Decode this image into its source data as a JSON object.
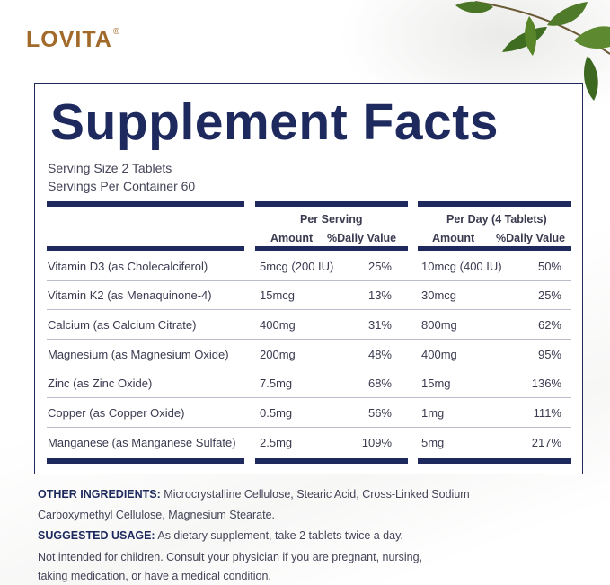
{
  "brand": {
    "name": "LOVITA",
    "registered": "®"
  },
  "title": "Supplement Facts",
  "serving_size": "Serving Size 2 Tablets",
  "servings_per_container": "Servings Per Container 60",
  "columns": {
    "per_serving": "Per Serving",
    "per_day": "Per Day (4 Tablets)",
    "amount": "Amount",
    "daily_value": "%Daily Value"
  },
  "rows": [
    {
      "name": "Vitamin D3  (as Cholecalciferol)",
      "serving_amount": "5mcg (200 IU)",
      "serving_dv": "25%",
      "day_amount": "10mcg (400 IU)",
      "day_dv": "50%"
    },
    {
      "name": "Vitamin K2  (as Menaquinone-4)",
      "serving_amount": "15mcg",
      "serving_dv": "13%",
      "day_amount": "30mcg",
      "day_dv": "25%"
    },
    {
      "name": "Calcium (as Calcium Citrate)",
      "serving_amount": "400mg",
      "serving_dv": "31%",
      "day_amount": "800mg",
      "day_dv": "62%"
    },
    {
      "name": "Magnesium (as Magnesium Oxide)",
      "serving_amount": "200mg",
      "serving_dv": "48%",
      "day_amount": "400mg",
      "day_dv": "95%"
    },
    {
      "name": "Zinc (as Zinc Oxide)",
      "serving_amount": "7.5mg",
      "serving_dv": "68%",
      "day_amount": "15mg",
      "day_dv": "136%"
    },
    {
      "name": "Copper (as Copper Oxide)",
      "serving_amount": "0.5mg",
      "serving_dv": "56%",
      "day_amount": "1mg",
      "day_dv": "111%"
    },
    {
      "name": "Manganese (as Manganese Sulfate)",
      "serving_amount": "2.5mg",
      "serving_dv": "109%",
      "day_amount": "5mg",
      "day_dv": "217%"
    }
  ],
  "other_ingredients": {
    "label": "OTHER INGREDIENTS:",
    "line1": " Microcrystalline Cellulose, Stearic Acid, Cross-Linked Sodium",
    "line2": "Carboxymethyl Cellulose, Magnesium Stearate."
  },
  "suggested_usage": {
    "label": "SUGGESTED USAGE:",
    "text": " As dietary supplement, take 2 tablets twice a day."
  },
  "warning": {
    "line1": "Not intended for children. Consult your physician if you are pregnant, nursing,",
    "line2": "taking medication, or have a medical condition."
  },
  "colors": {
    "navy": "#1e2a5e",
    "brand_gold": "#a26a2a"
  }
}
